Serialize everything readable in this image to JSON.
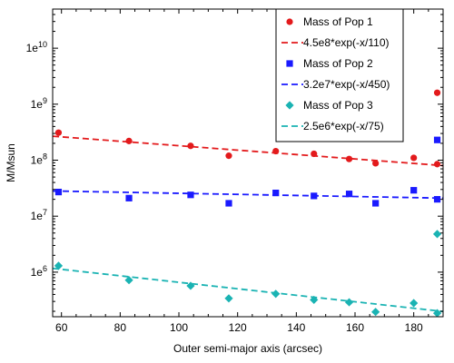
{
  "chart_data": {
    "type": "scatter",
    "title": "",
    "xlabel": "Outer semi-major axis (arcsec)",
    "ylabel": "M/Msun",
    "xscale": "linear",
    "yscale": "log",
    "xlim": [
      57,
      190
    ],
    "ylim": [
      160000,
      50000000000
    ],
    "x_ticks": [
      60,
      80,
      100,
      120,
      140,
      160,
      180
    ],
    "y_ticks": [
      {
        "value": 1000000,
        "base": "1e",
        "exp": "6"
      },
      {
        "value": 10000000,
        "base": "1e",
        "exp": "7"
      },
      {
        "value": 100000000,
        "base": "1e",
        "exp": "8"
      },
      {
        "value": 1000000000,
        "base": "1e",
        "exp": "9"
      },
      {
        "value": 10000000000,
        "base": "1e",
        "exp": "10"
      }
    ],
    "grid": false,
    "legend_position": "top-right",
    "series": [
      {
        "name": "Mass of Pop 1",
        "color": "#e31a1c",
        "marker": "circle",
        "x": [
          59,
          83,
          104,
          117,
          133,
          146,
          158,
          167,
          180,
          188
        ],
        "y": [
          310000000,
          220000000,
          180000000,
          120000000,
          145000000,
          130000000,
          105000000,
          88000000,
          110000000,
          1600000000
        ]
      },
      {
        "name": "Mass of Pop 2",
        "color": "#1a1aff",
        "marker": "square",
        "x": [
          59,
          83,
          104,
          117,
          133,
          146,
          158,
          167,
          180,
          188
        ],
        "y": [
          27000000,
          21000000,
          24000000,
          17000000,
          26000000,
          23000000,
          25000000,
          17000000,
          29000000,
          230000000
        ]
      },
      {
        "name": "Mass of Pop 3",
        "color": "#1ab3b3",
        "marker": "diamond",
        "x": [
          59,
          83,
          104,
          117,
          133,
          146,
          158,
          167,
          180,
          188
        ],
        "y": [
          1300000,
          720000,
          570000,
          340000,
          410000,
          320000,
          290000,
          195000,
          280000,
          4800000
        ]
      }
    ],
    "fits": [
      {
        "name": "4.5e8*exp(-x/110)",
        "color": "#e31a1c",
        "amplitude": 450000000,
        "scale": 110
      },
      {
        "name": "3.2e7*exp(-x/450)",
        "color": "#1a1aff",
        "amplitude": 32000000,
        "scale": 450
      },
      {
        "name": "2.5e6*exp(-x/75)",
        "color": "#1ab3b3",
        "amplitude": 2500000,
        "scale": 75
      }
    ],
    "extra_points": [
      {
        "color": "#e31a1c",
        "marker": "circle",
        "x": 188,
        "y": 85000000
      },
      {
        "color": "#1a1aff",
        "marker": "square",
        "x": 188,
        "y": 20000000
      },
      {
        "color": "#1ab3b3",
        "marker": "diamond",
        "x": 188,
        "y": 185000
      }
    ]
  }
}
